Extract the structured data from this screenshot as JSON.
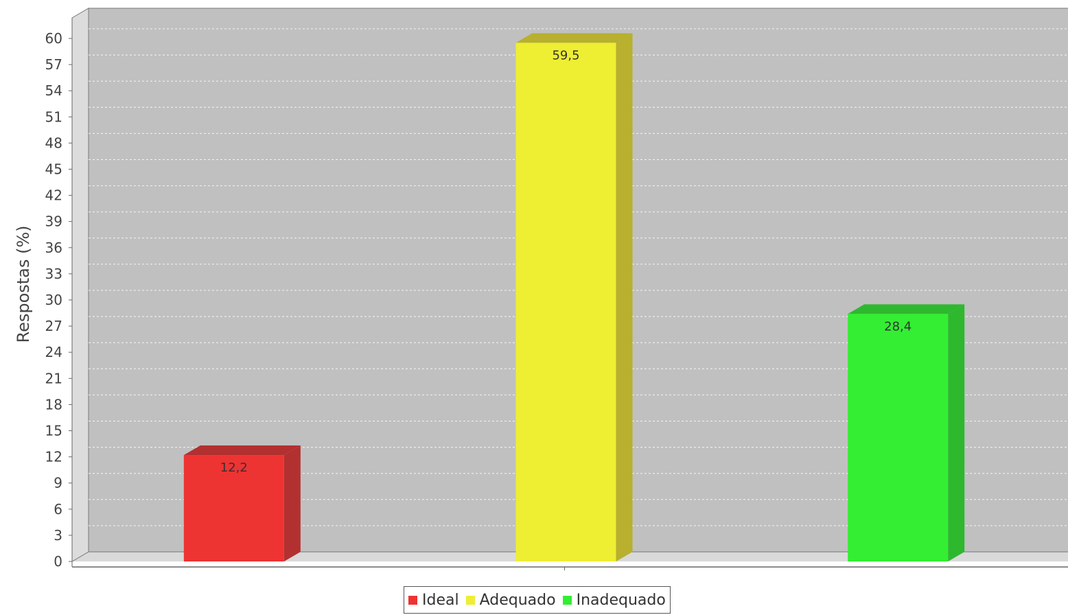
{
  "chart_data": {
    "type": "bar",
    "title": "",
    "xlabel": "",
    "ylabel": "Respostas (%)",
    "ylim": [
      0,
      60
    ],
    "yticks": [
      0,
      3,
      6,
      9,
      12,
      15,
      18,
      21,
      24,
      27,
      30,
      33,
      36,
      39,
      42,
      45,
      48,
      51,
      54,
      57,
      60
    ],
    "categories": [
      "Ideal",
      "Adequado",
      "Inadequado"
    ],
    "values": [
      12.2,
      59.5,
      28.4
    ],
    "data_labels": [
      "12,2",
      "59,5",
      "28,4"
    ],
    "colors": [
      "#ee3333",
      "#eeee33",
      "#33ee33"
    ],
    "side_colors": [
      "#b33030",
      "#b8b02e",
      "#2eb82e"
    ],
    "grid": true,
    "style": "3d",
    "legend_position": "bottom-center",
    "plot_background": "#c0c0c0"
  }
}
